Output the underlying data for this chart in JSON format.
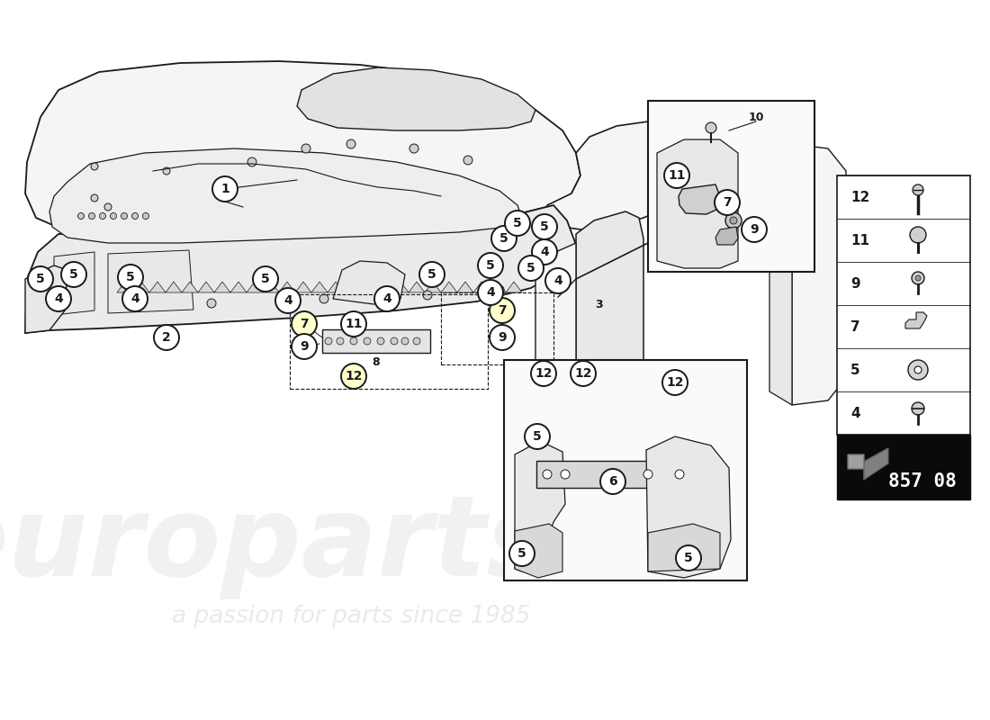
{
  "bg_color": "#ffffff",
  "line_color": "#1a1a1a",
  "fill_light": "#f5f5f5",
  "fill_mid": "#e8e8e8",
  "fill_dark": "#d0d0d0",
  "watermark1": "europarts",
  "watermark2": "a passion for parts since 1985",
  "code": "857 08",
  "yellow_bg": "#ffffcc",
  "legend_nums": [
    12,
    11,
    9,
    7,
    5,
    4
  ],
  "callout_white_bg": "#ffffff",
  "callout_yellow_bg": "#ffffcc"
}
